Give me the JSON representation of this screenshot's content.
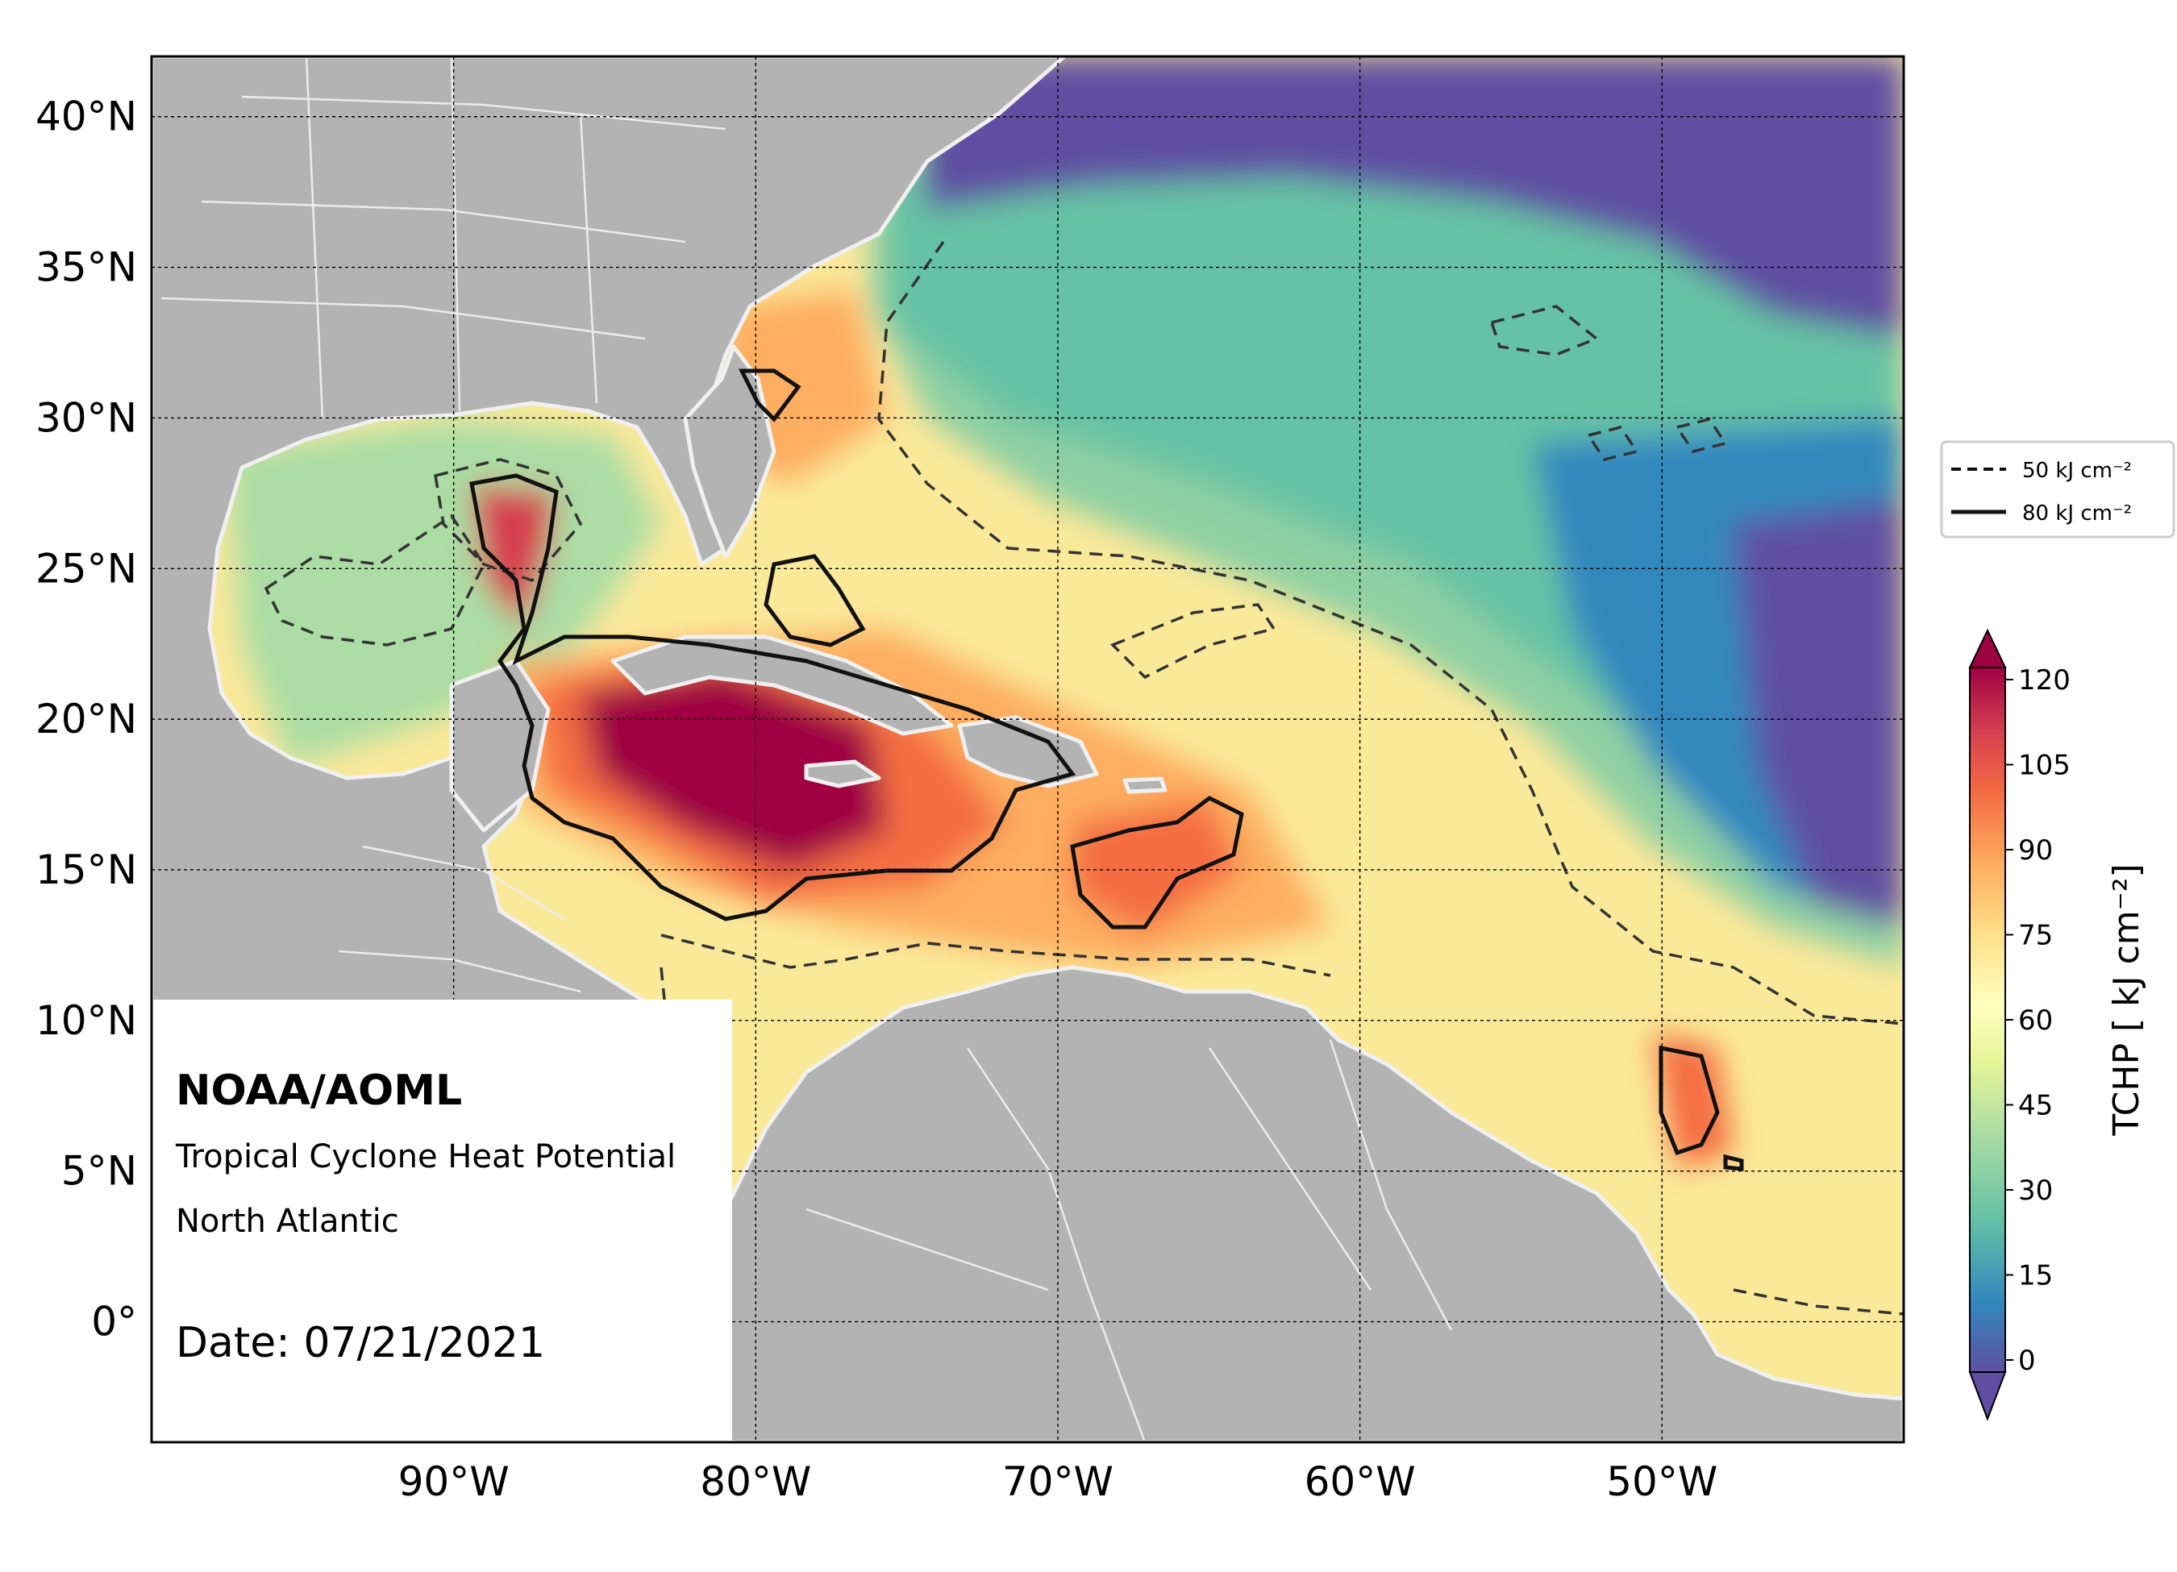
{
  "map": {
    "title_org": "NOAA/AOML",
    "subtitle_line1": "Tropical Cyclone Heat Potential",
    "subtitle_line2": "North Atlantic",
    "date_text": "Date: 07/21/2021",
    "lat_labels": [
      "40°N",
      "35°N",
      "30°N",
      "25°N",
      "20°N",
      "15°N",
      "10°N",
      "5°N",
      "0°"
    ],
    "lon_labels": [
      "90°W",
      "80°W",
      "70°W",
      "60°W",
      "50°W"
    ],
    "extent": {
      "lon_min": -100,
      "lon_max": -42,
      "lat_min": -4,
      "lat_max": 42
    },
    "gridlines": true,
    "land_color": "#b3b3b3",
    "contour_legend": [
      {
        "label": "50 kJ cm⁻²",
        "style": "dashed"
      },
      {
        "label": "80 kJ cm⁻²",
        "style": "solid"
      }
    ]
  },
  "colorbar": {
    "title": "TCHP [ kJ cm⁻²]",
    "ticks": [
      "120",
      "105",
      "90",
      "75",
      "60",
      "45",
      "30",
      "15",
      "0"
    ],
    "min": 0,
    "max": 120,
    "colors": [
      "#5e4fa2",
      "#3288bd",
      "#66c2a5",
      "#abdda4",
      "#e6f598",
      "#ffffbf",
      "#fee08b",
      "#fdae61",
      "#f46d43",
      "#d53e4f",
      "#9e0142"
    ]
  }
}
